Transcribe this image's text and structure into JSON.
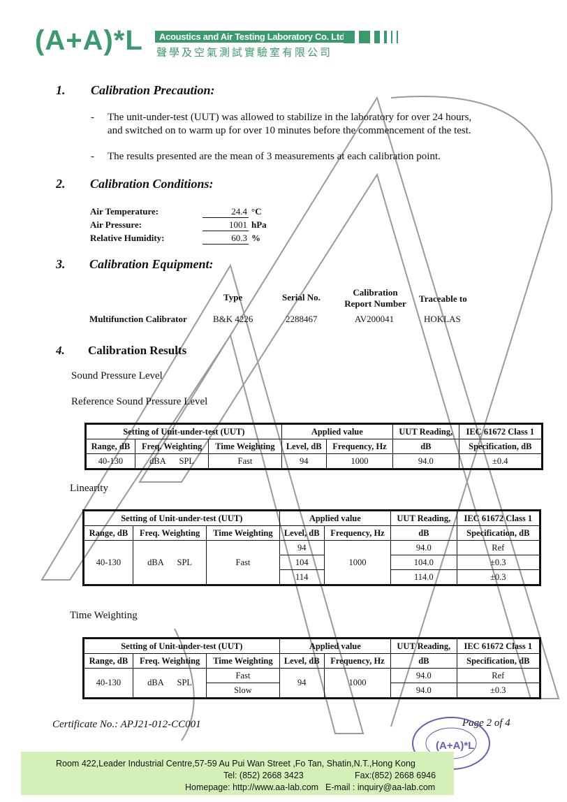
{
  "header": {
    "logo": "(A+A)*L",
    "company_en": "Acoustics and Air Testing Laboratory Co. Ltd.",
    "company_zh": "聲學及空氣測試實驗室有限公司",
    "brand_color": "#3a9a6e"
  },
  "sections": {
    "s1": {
      "num": "1.",
      "title": "Calibration Precaution:",
      "items": [
        "The unit-under-test (UUT) was allowed to stabilize in the laboratory for over 24 hours,",
        "and switched on to warm up for over 10 minutes before the commencement of the test.",
        "The results presented are the mean of 3 measurements at each calibration point."
      ]
    },
    "s2": {
      "num": "2.",
      "title": "Calibration Conditions:",
      "rows": [
        {
          "label": "Air Temperature:",
          "value": "24.4",
          "unit": "°C"
        },
        {
          "label": "Air Pressure:",
          "value": "1001",
          "unit": "hPa"
        },
        {
          "label": "Relative Humidity:",
          "value": "60.3",
          "unit": "%"
        }
      ]
    },
    "s3": {
      "num": "3.",
      "title": "Calibration Equipment:",
      "headers": [
        "Type",
        "Serial No.",
        "Calibration Report Number",
        "Traceable to"
      ],
      "row": {
        "name": "Multifunction Calibrator",
        "type": "B&K 4226",
        "serial": "2288467",
        "report": "AV200041",
        "trace": "HOKLAS"
      }
    },
    "s4": {
      "num": "4.",
      "title": "Calibration Results",
      "sub1": "Sound Pressure Level",
      "sub2": "Reference Sound Pressure Level",
      "linearity": "Linearity",
      "time": "Time Weighting"
    }
  },
  "table_headers": {
    "uut": "Setting of Unit-under-test (UUT)",
    "applied": "Applied value",
    "reading": "UUT Reading,",
    "reading2": "dB",
    "spec": "IEC 61672 Class 1",
    "spec2": "Specification, dB",
    "range": "Range, dB",
    "freq": "Freq. Weighting",
    "timew": "Time Weighting",
    "level": "Level, dB",
    "freqhz": "Frequency, Hz"
  },
  "ref_table": {
    "range": "40-130",
    "fw": "dBA",
    "spl": "SPL",
    "tw": "Fast",
    "level": "94",
    "freq": "1000",
    "reading": "94.0",
    "spec": "±0.4"
  },
  "lin_table": {
    "range": "40-130",
    "fw": "dBA",
    "spl": "SPL",
    "tw": "Fast",
    "freq": "1000",
    "rows": [
      {
        "level": "94",
        "reading": "94.0",
        "spec": "Ref"
      },
      {
        "level": "104",
        "reading": "104.0",
        "spec": "±0.3"
      },
      {
        "level": "114",
        "reading": "114.0",
        "spec": "±0.3"
      }
    ]
  },
  "tw_table": {
    "range": "40-130",
    "fw": "dBA",
    "spl": "SPL",
    "level": "94",
    "freq": "1000",
    "rows": [
      {
        "tw": "Fast",
        "reading": "94.0",
        "spec": "Ref"
      },
      {
        "tw": "Slow",
        "reading": "94.0",
        "spec": "±0.3"
      }
    ]
  },
  "footer": {
    "cert": "Certificate No.: APJ21-012-CC001",
    "page": "Page 2 of 4",
    "address": "Room 422,Leader Industrial Centre,57-59 Au Pui Wan Street ,Fo Tan, Shatin,N.T.,Hong Kong",
    "tel": "Tel: (852) 2668 3423",
    "fax": "Fax:(852) 2668 6946",
    "homepage": "Homepage: http://www.aa-lab.com",
    "email": "E-mail : inquiry@aa-lab.com",
    "stamp": "ACOUSTICS AND AIR TESTING LABORATORY CO LTD (A+A)*L"
  }
}
